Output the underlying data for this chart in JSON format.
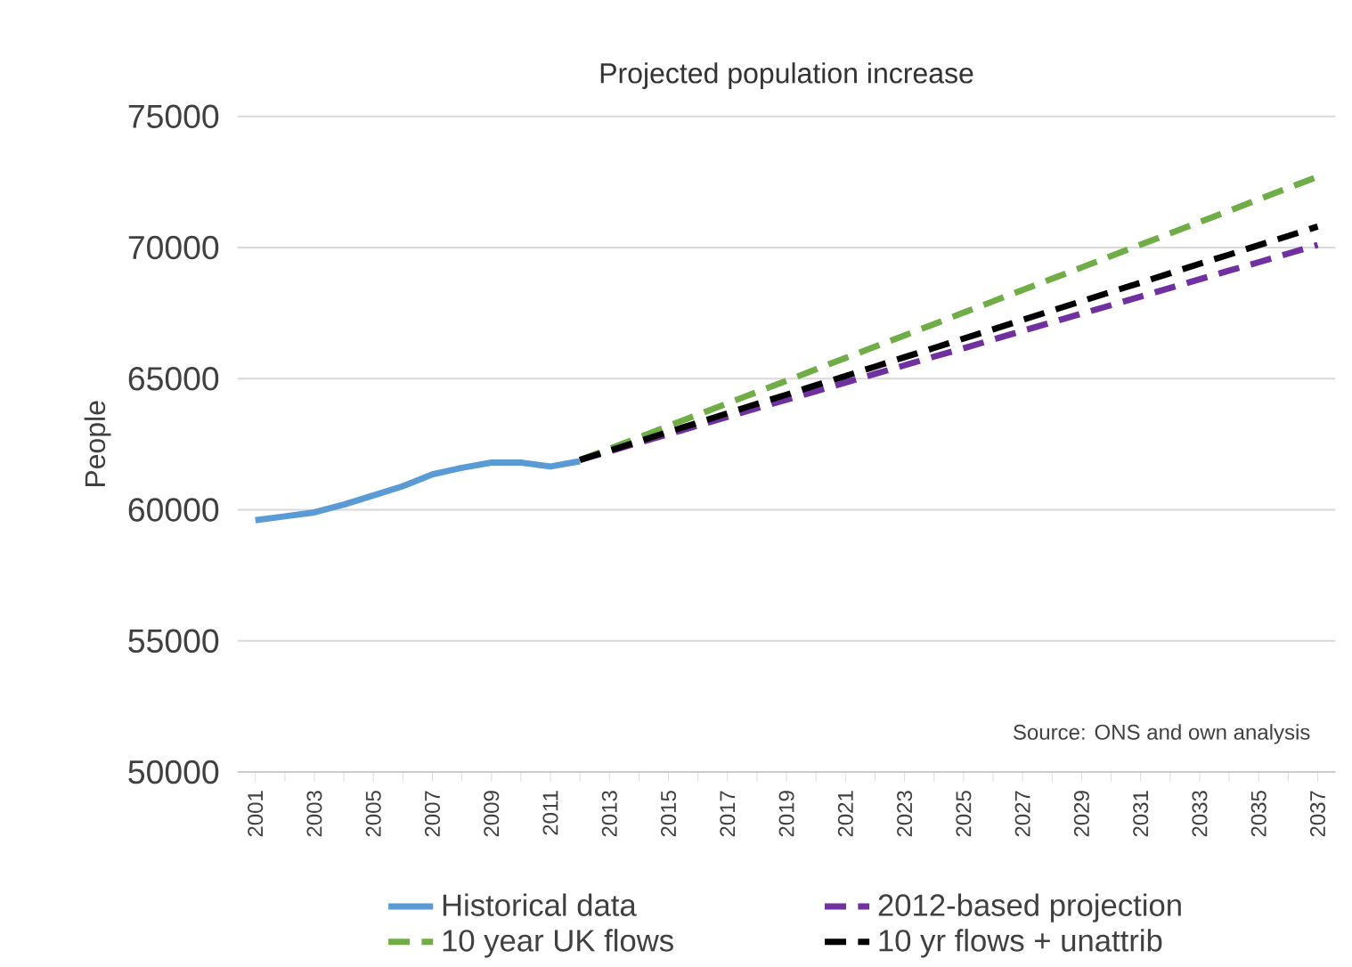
{
  "chart_data": {
    "type": "line",
    "title": "Projected population increase",
    "ylabel": "People",
    "categories": [
      "2001",
      null,
      "2003",
      null,
      "2005",
      null,
      "2007",
      null,
      "2009",
      null,
      "2011",
      null,
      "2013",
      null,
      "2015",
      null,
      "2017",
      null,
      "2019",
      null,
      "2021",
      null,
      "2023",
      null,
      "2025",
      null,
      "2027",
      null,
      "2029",
      null,
      "2031",
      null,
      "2033",
      null,
      "2035",
      null,
      "2037"
    ],
    "series": [
      {
        "name": "Historical data",
        "color": "#5b9bd5",
        "line_style": "solid",
        "values": [
          59600,
          59750,
          59900,
          60200,
          60550,
          60900,
          61350,
          61600,
          61800,
          61800,
          61650,
          61850,
          null,
          null,
          null,
          null,
          null,
          null,
          null,
          null,
          null,
          null,
          null,
          null,
          null,
          null,
          null,
          null,
          null,
          null,
          null,
          null,
          null,
          null,
          null,
          null,
          null
        ]
      },
      {
        "name": "2012-based projection",
        "color": "#7030a0",
        "line_style": "dashed",
        "values": [
          null,
          null,
          null,
          null,
          null,
          null,
          null,
          null,
          null,
          null,
          null,
          61900,
          62230,
          62560,
          62880,
          63210,
          63540,
          63870,
          64200,
          64520,
          64850,
          65180,
          65510,
          65840,
          66160,
          66490,
          66820,
          67150,
          67480,
          67800,
          68130,
          68460,
          68790,
          69120,
          69440,
          69770,
          70100
        ]
      },
      {
        "name": "10 year UK flows",
        "color": "#70ad47",
        "line_style": "dashed",
        "values": [
          null,
          null,
          null,
          null,
          null,
          null,
          null,
          null,
          null,
          null,
          null,
          61900,
          62330,
          62760,
          63200,
          63630,
          64060,
          64490,
          64920,
          65360,
          65790,
          66220,
          66650,
          67080,
          67520,
          67950,
          68380,
          68810,
          69240,
          69680,
          70110,
          70540,
          70970,
          71400,
          71840,
          72270,
          72700
        ]
      },
      {
        "name": "10 yr flows + unattrib",
        "color": "#000000",
        "line_style": "dashed",
        "values": [
          null,
          null,
          null,
          null,
          null,
          null,
          null,
          null,
          null,
          null,
          null,
          61900,
          62260,
          62610,
          62970,
          63320,
          63680,
          64040,
          64390,
          64750,
          65100,
          65460,
          65820,
          66170,
          66530,
          66880,
          67240,
          67600,
          67950,
          68310,
          68660,
          69020,
          69380,
          69730,
          70090,
          70440,
          70800
        ]
      }
    ],
    "ylim": [
      50000,
      75000
    ],
    "yticks": [
      50000,
      55000,
      60000,
      65000,
      70000,
      75000
    ],
    "grid": "y",
    "legend": "bottom",
    "annotations": [
      "Source: ONS and own analysis"
    ]
  }
}
